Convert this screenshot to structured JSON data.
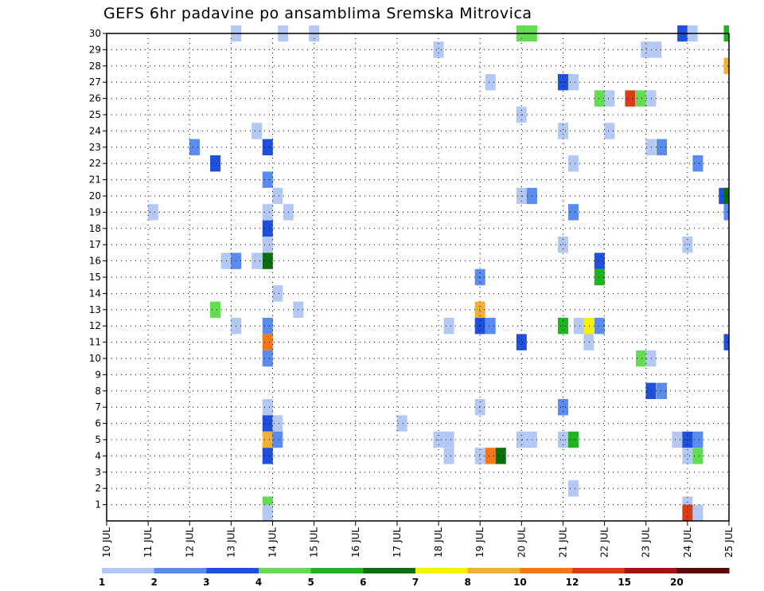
{
  "chart_data": {
    "type": "heatmap",
    "title": "GEFS 6hr padavine po ansamblima Sremska Mitrovica",
    "xlabel": "",
    "ylabel": "",
    "y_range": [
      0,
      30
    ],
    "y_ticks": [
      1,
      2,
      3,
      4,
      5,
      6,
      7,
      8,
      9,
      10,
      11,
      12,
      13,
      14,
      15,
      16,
      17,
      18,
      19,
      20,
      21,
      22,
      23,
      24,
      25,
      26,
      27,
      28,
      29,
      30
    ],
    "x_range": [
      10,
      25
    ],
    "x_ticks": [
      {
        "day": 10,
        "label": "10 JUL"
      },
      {
        "day": 11,
        "label": "11 JUL"
      },
      {
        "day": 12,
        "label": "12 JUL"
      },
      {
        "day": 13,
        "label": "13 JUL"
      },
      {
        "day": 14,
        "label": "14 JUL"
      },
      {
        "day": 15,
        "label": "15 JUL"
      },
      {
        "day": 16,
        "label": "16 JUL"
      },
      {
        "day": 17,
        "label": "17 JUL"
      },
      {
        "day": 18,
        "label": "18 JUL"
      },
      {
        "day": 19,
        "label": "19 JUL"
      },
      {
        "day": 20,
        "label": "20 JUL"
      },
      {
        "day": 21,
        "label": "21 JUL"
      },
      {
        "day": 22,
        "label": "22 JUL"
      },
      {
        "day": 23,
        "label": "23 JUL"
      },
      {
        "day": 24,
        "label": "24 JUL"
      },
      {
        "day": 25,
        "label": "25 JUL"
      }
    ],
    "grid": "dotted",
    "colorbar": {
      "colors": [
        "#b4c8f5",
        "#5a8cf0",
        "#1e50dc",
        "#64dc50",
        "#1eb41e",
        "#0a6e0a",
        "#f5f00a",
        "#f5af32",
        "#f57814",
        "#dc3c14",
        "#a01414",
        "#5a0a0a"
      ],
      "labels": [
        {
          "pos": 0,
          "text": "1"
        },
        {
          "pos": 1,
          "text": "2"
        },
        {
          "pos": 2,
          "text": "3"
        },
        {
          "pos": 3,
          "text": "4"
        },
        {
          "pos": 4,
          "text": "5"
        },
        {
          "pos": 5,
          "text": "6"
        },
        {
          "pos": 6,
          "text": "7"
        },
        {
          "pos": 7,
          "text": "8"
        },
        {
          "pos": 8,
          "text": "10"
        },
        {
          "pos": 9,
          "text": "12"
        },
        {
          "pos": 10,
          "text": "15"
        },
        {
          "pos": 11,
          "text": "20"
        }
      ]
    },
    "cells_note": "each cell: [day, member, color level 0-11]",
    "cells": [
      [
        13.12,
        30,
        0
      ],
      [
        14.25,
        30,
        0
      ],
      [
        15.0,
        30,
        0
      ],
      [
        20.0,
        30,
        3
      ],
      [
        20.25,
        30,
        3
      ],
      [
        23.88,
        30,
        2
      ],
      [
        24.12,
        30,
        0
      ],
      [
        25.0,
        30,
        4
      ],
      [
        18.0,
        29,
        0
      ],
      [
        23.0,
        29,
        0
      ],
      [
        23.25,
        29,
        0
      ],
      [
        25.0,
        28,
        7
      ],
      [
        19.25,
        27,
        0
      ],
      [
        21.0,
        27,
        2
      ],
      [
        21.25,
        27,
        0
      ],
      [
        21.88,
        26,
        3
      ],
      [
        22.12,
        26,
        0
      ],
      [
        22.62,
        26,
        9
      ],
      [
        22.88,
        26,
        3
      ],
      [
        23.12,
        26,
        0
      ],
      [
        20.0,
        25,
        0
      ],
      [
        13.62,
        24,
        0
      ],
      [
        21.0,
        24,
        0
      ],
      [
        22.12,
        24,
        0
      ],
      [
        12.12,
        23,
        1
      ],
      [
        13.88,
        23,
        2
      ],
      [
        23.12,
        23,
        0
      ],
      [
        23.38,
        23,
        1
      ],
      [
        12.62,
        22,
        2
      ],
      [
        21.25,
        22,
        0
      ],
      [
        24.25,
        22,
        1
      ],
      [
        13.88,
        21,
        1
      ],
      [
        14.12,
        20,
        0
      ],
      [
        20.0,
        20,
        0
      ],
      [
        20.25,
        20,
        1
      ],
      [
        24.88,
        20,
        2
      ],
      [
        25.0,
        20,
        5
      ],
      [
        11.12,
        19,
        0
      ],
      [
        13.88,
        19,
        0
      ],
      [
        14.38,
        19,
        0
      ],
      [
        21.25,
        19,
        1
      ],
      [
        25.0,
        19,
        1
      ],
      [
        13.88,
        18,
        2
      ],
      [
        13.88,
        17,
        0
      ],
      [
        21.0,
        17,
        0
      ],
      [
        24.0,
        17,
        0
      ],
      [
        12.88,
        16,
        0
      ],
      [
        13.12,
        16,
        1
      ],
      [
        13.62,
        16,
        0
      ],
      [
        13.88,
        16,
        5
      ],
      [
        21.88,
        16,
        2
      ],
      [
        19.0,
        15,
        1
      ],
      [
        21.88,
        15,
        4
      ],
      [
        14.12,
        14,
        0
      ],
      [
        12.62,
        13,
        3
      ],
      [
        14.62,
        13,
        0
      ],
      [
        19.0,
        13,
        7
      ],
      [
        13.12,
        12,
        0
      ],
      [
        13.88,
        12,
        1
      ],
      [
        18.25,
        12,
        0
      ],
      [
        19.0,
        12,
        2
      ],
      [
        19.25,
        12,
        1
      ],
      [
        21.0,
        12,
        4
      ],
      [
        21.38,
        12,
        0
      ],
      [
        21.62,
        12,
        6
      ],
      [
        21.88,
        12,
        1
      ],
      [
        13.88,
        11,
        8
      ],
      [
        20.0,
        11,
        2
      ],
      [
        21.62,
        11,
        0
      ],
      [
        25.0,
        11,
        2
      ],
      [
        13.88,
        10,
        1
      ],
      [
        22.88,
        10,
        3
      ],
      [
        23.12,
        10,
        0
      ],
      [
        23.12,
        8,
        2
      ],
      [
        23.38,
        8,
        1
      ],
      [
        13.88,
        7,
        0
      ],
      [
        19.0,
        7,
        0
      ],
      [
        21.0,
        7,
        1
      ],
      [
        13.88,
        6,
        2
      ],
      [
        14.12,
        6,
        0
      ],
      [
        17.12,
        6,
        0
      ],
      [
        13.88,
        5,
        7
      ],
      [
        14.12,
        5,
        1
      ],
      [
        18.0,
        5,
        0
      ],
      [
        18.25,
        5,
        0
      ],
      [
        20.0,
        5,
        0
      ],
      [
        20.25,
        5,
        0
      ],
      [
        21.0,
        5,
        0
      ],
      [
        21.25,
        5,
        4
      ],
      [
        23.75,
        5,
        0
      ],
      [
        24.0,
        5,
        2
      ],
      [
        24.25,
        5,
        1
      ],
      [
        13.88,
        4,
        2
      ],
      [
        18.25,
        4,
        0
      ],
      [
        19.0,
        4,
        0
      ],
      [
        19.25,
        4,
        8
      ],
      [
        19.5,
        4,
        5
      ],
      [
        24.0,
        4,
        0
      ],
      [
        24.25,
        4,
        3
      ],
      [
        21.25,
        2,
        0
      ],
      [
        13.88,
        1,
        3
      ],
      [
        24.0,
        1,
        0
      ],
      [
        13.88,
        0.5,
        0
      ],
      [
        24.0,
        0.5,
        9
      ],
      [
        24.25,
        0.5,
        0
      ]
    ]
  }
}
